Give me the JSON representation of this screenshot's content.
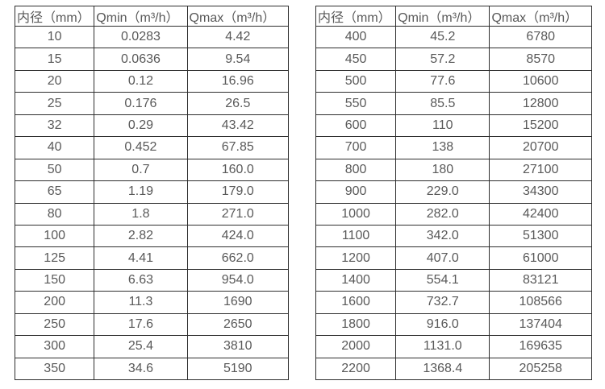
{
  "colors": {
    "background": "#ffffff",
    "border": "#2e2e2e",
    "text": "#595959"
  },
  "tables": [
    {
      "name": "small-diameters",
      "headers": [
        "内径（mm）",
        "Qmin（m³/h）",
        "Qmax（m³/h）"
      ],
      "rows": [
        [
          "10",
          "0.0283",
          "4.42"
        ],
        [
          "15",
          "0.0636",
          "9.54"
        ],
        [
          "20",
          "0.12",
          "16.96"
        ],
        [
          "25",
          "0.176",
          "26.5"
        ],
        [
          "32",
          "0.29",
          "43.42"
        ],
        [
          "40",
          "0.452",
          "67.85"
        ],
        [
          "50",
          "0.7",
          "160.0"
        ],
        [
          "65",
          "1.19",
          "179.0"
        ],
        [
          "80",
          "1.8",
          "271.0"
        ],
        [
          "100",
          "2.82",
          "424.0"
        ],
        [
          "125",
          "4.41",
          "662.0"
        ],
        [
          "150",
          "6.63",
          "954.0"
        ],
        [
          "200",
          "11.3",
          "1690"
        ],
        [
          "250",
          "17.6",
          "2650"
        ],
        [
          "300",
          "25.4",
          "3810"
        ],
        [
          "350",
          "34.6",
          "5190"
        ]
      ]
    },
    {
      "name": "large-diameters",
      "headers": [
        "内径（mm）",
        "Qmin（m³/h）",
        "Qmax（m³/h）"
      ],
      "rows": [
        [
          "400",
          "45.2",
          "6780"
        ],
        [
          "450",
          "57.2",
          "8570"
        ],
        [
          "500",
          "77.6",
          "10600"
        ],
        [
          "550",
          "85.5",
          "12800"
        ],
        [
          "600",
          "110",
          "15200"
        ],
        [
          "700",
          "138",
          "20700"
        ],
        [
          "800",
          "180",
          "27100"
        ],
        [
          "900",
          "229.0",
          "34300"
        ],
        [
          "1000",
          "282.0",
          "42400"
        ],
        [
          "1100",
          "342.0",
          "51300"
        ],
        [
          "1200",
          "407.0",
          "61000"
        ],
        [
          "1400",
          "554.1",
          "83121"
        ],
        [
          "1600",
          "732.7",
          "108566"
        ],
        [
          "1800",
          "916.0",
          "137404"
        ],
        [
          "2000",
          "1131.0",
          "169635"
        ],
        [
          "2200",
          "1368.4",
          "205258"
        ]
      ]
    }
  ]
}
